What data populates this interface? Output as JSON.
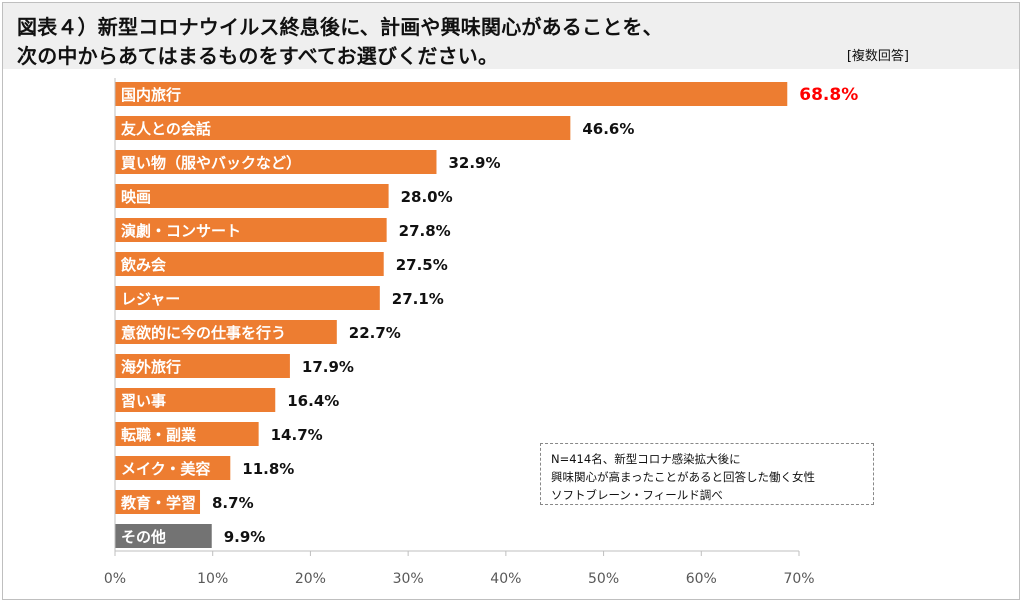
{
  "header": {
    "title_line1": "図表４）新型コロナウイルス終息後に、計画や興味関心があることを、",
    "title_line2": "次の中からあてはまるものをすべてお選びください。",
    "answer_type": "[複数回答]"
  },
  "footnote": {
    "line1": "N=414名、新型コロナ感染拡大後に",
    "line2": "興味関心が高まったことがあると回答した働く女性",
    "line3": "ソフトブレーン・フィールド調べ"
  },
  "colors": {
    "bar": "#ED7D31",
    "bar_other": "#737373",
    "highlight_label": "#FF0000",
    "label": "#111111"
  },
  "chart_data": {
    "type": "bar",
    "orientation": "horizontal",
    "categories": [
      "国内旅行",
      "友人との会話",
      "買い物（服やバックなど）",
      "映画",
      "演劇・コンサート",
      "飲み会",
      "レジャー",
      "意欲的に今の仕事を行う",
      "海外旅行",
      "習い事",
      "転職・副業",
      "メイク・美容",
      "教育・学習",
      "その他"
    ],
    "values": [
      68.8,
      46.6,
      32.9,
      28.0,
      27.8,
      27.5,
      27.1,
      22.7,
      17.9,
      16.4,
      14.7,
      11.8,
      8.7,
      9.9
    ],
    "value_labels": [
      "68.8%",
      "46.6%",
      "32.9%",
      "28.0%",
      "27.8%",
      "27.5%",
      "27.1%",
      "22.7%",
      "17.9%",
      "16.4%",
      "14.7%",
      "11.8%",
      "8.7%",
      "9.9%"
    ],
    "xlim": [
      0,
      70
    ],
    "x_ticks": [
      "0%",
      "10%",
      "20%",
      "30%",
      "40%",
      "50%",
      "60%",
      "70%"
    ],
    "grid": false,
    "highlighted_category": "国内旅行",
    "gray_category": "その他"
  }
}
